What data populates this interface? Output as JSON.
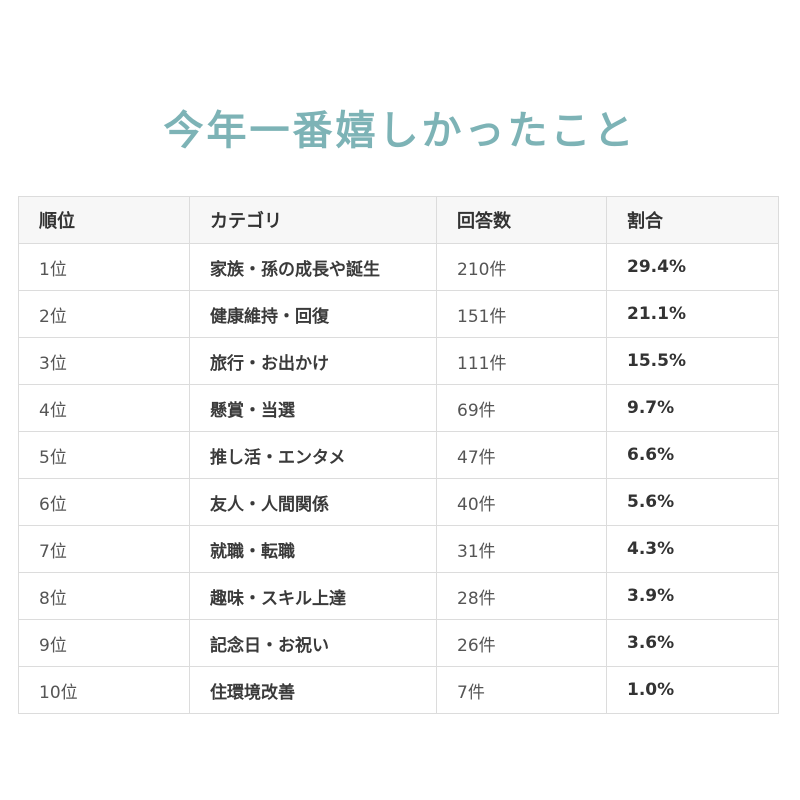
{
  "title": "今年一番嬉しかったこと",
  "colors": {
    "title": "#7db3b6",
    "header_bg": "#f7f7f7",
    "border": "#dcdcdc",
    "text": "#3a3a3a"
  },
  "table": {
    "headers": [
      "順位",
      "カテゴリ",
      "回答数",
      "割合"
    ],
    "rows": [
      {
        "rank": "1位",
        "category": "家族・孫の成長や誕生",
        "count": "210件",
        "ratio": "29.4%"
      },
      {
        "rank": "2位",
        "category": "健康維持・回復",
        "count": "151件",
        "ratio": "21.1%"
      },
      {
        "rank": "3位",
        "category": "旅行・お出かけ",
        "count": "111件",
        "ratio": "15.5%"
      },
      {
        "rank": "4位",
        "category": "懸賞・当選",
        "count": "69件",
        "ratio": "9.7%"
      },
      {
        "rank": "5位",
        "category": "推し活・エンタメ",
        "count": "47件",
        "ratio": "6.6%"
      },
      {
        "rank": "6位",
        "category": "友人・人間関係",
        "count": "40件",
        "ratio": "5.6%"
      },
      {
        "rank": "7位",
        "category": "就職・転職",
        "count": "31件",
        "ratio": "4.3%"
      },
      {
        "rank": "8位",
        "category": "趣味・スキル上達",
        "count": "28件",
        "ratio": "3.9%"
      },
      {
        "rank": "9位",
        "category": "記念日・お祝い",
        "count": "26件",
        "ratio": "3.6%"
      },
      {
        "rank": "10位",
        "category": "住環境改善",
        "count": "7件",
        "ratio": "1.0%"
      }
    ]
  }
}
